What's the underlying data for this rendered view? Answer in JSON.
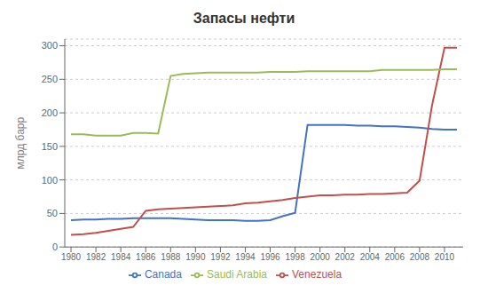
{
  "chart_data": {
    "type": "line",
    "title": "Запасы нефти",
    "y_label": "млрд барр",
    "x": [
      1980,
      1981,
      1982,
      1983,
      1984,
      1985,
      1986,
      1987,
      1988,
      1989,
      1990,
      1991,
      1992,
      1993,
      1994,
      1995,
      1996,
      1997,
      1998,
      1999,
      2000,
      2001,
      2002,
      2003,
      2004,
      2005,
      2006,
      2007,
      2008,
      2009,
      2010,
      2011
    ],
    "series": [
      {
        "name": "Canada",
        "color": "#4472c4",
        "values": [
          40,
          41,
          41,
          42,
          42,
          43,
          43,
          43,
          43,
          42,
          41,
          40,
          40,
          40,
          39,
          39,
          40,
          46,
          51,
          182,
          182,
          182,
          182,
          181,
          181,
          180,
          180,
          179,
          178,
          176,
          175,
          175
        ]
      },
      {
        "name": "Venezuela",
        "color": "#c0504d",
        "values": [
          18,
          19,
          21,
          24,
          27,
          30,
          54,
          56,
          57,
          58,
          59,
          60,
          61,
          62,
          65,
          66,
          68,
          70,
          73,
          75,
          77,
          77,
          78,
          78,
          79,
          79,
          80,
          81,
          99,
          211,
          297,
          297
        ]
      },
      {
        "name": "Saudi Arabia",
        "color": "#9bbb59",
        "values": [
          168,
          168,
          166,
          166,
          166,
          170,
          170,
          169,
          255,
          258,
          259,
          260,
          260,
          260,
          260,
          260,
          261,
          261,
          261,
          262,
          262,
          262,
          262,
          262,
          262,
          264,
          264,
          264,
          264,
          264,
          265,
          265
        ]
      }
    ],
    "xlim": [
      1979.5,
      2011.5
    ],
    "ylim": [
      0,
      310
    ],
    "xticks": [
      1980,
      1982,
      1984,
      1986,
      1988,
      1990,
      1992,
      1994,
      1996,
      1998,
      2000,
      2002,
      2004,
      2006,
      2008,
      2010
    ],
    "yticks": [
      0,
      50,
      100,
      150,
      200,
      250,
      300
    ],
    "grid": true,
    "legend": "bottom"
  }
}
